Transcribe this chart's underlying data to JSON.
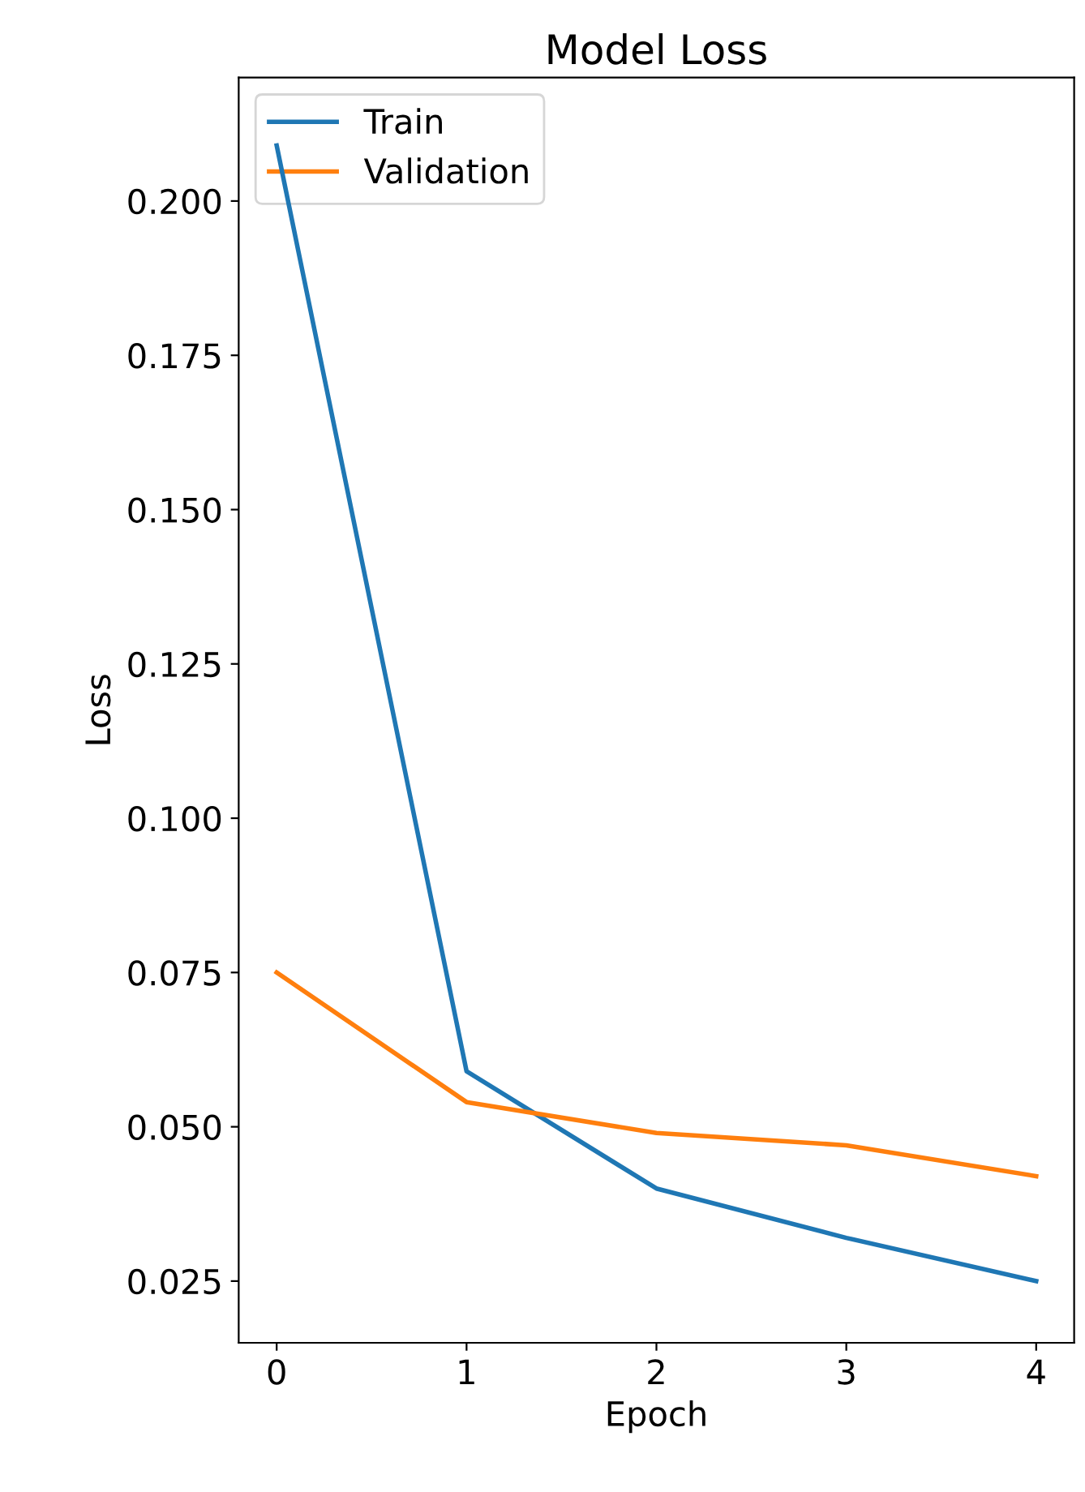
{
  "chart_data": {
    "type": "line",
    "title": "Model Loss",
    "xlabel": "Epoch",
    "ylabel": "Loss",
    "x": [
      0,
      1,
      2,
      3,
      4
    ],
    "series": [
      {
        "name": "Train",
        "color": "#1f77b4",
        "values": [
          0.209,
          0.059,
          0.04,
          0.032,
          0.025
        ]
      },
      {
        "name": "Validation",
        "color": "#ff7f0e",
        "values": [
          0.075,
          0.054,
          0.049,
          0.047,
          0.042
        ]
      }
    ],
    "xlim": [
      -0.2,
      4.2
    ],
    "xticks": [
      0,
      1,
      2,
      3,
      4
    ],
    "ylim": [
      0.015,
      0.22
    ],
    "yticks": [
      {
        "value": 0.025,
        "label": "0.025"
      },
      {
        "value": 0.05,
        "label": "0.050"
      },
      {
        "value": 0.075,
        "label": "0.075"
      },
      {
        "value": 0.1,
        "label": "0.100"
      },
      {
        "value": 0.125,
        "label": "0.125"
      },
      {
        "value": 0.15,
        "label": "0.150"
      },
      {
        "value": 0.175,
        "label": "0.175"
      },
      {
        "value": 0.2,
        "label": "0.200"
      }
    ],
    "legend": "top left",
    "grid": false,
    "marker": "none",
    "line_style": "solid"
  }
}
